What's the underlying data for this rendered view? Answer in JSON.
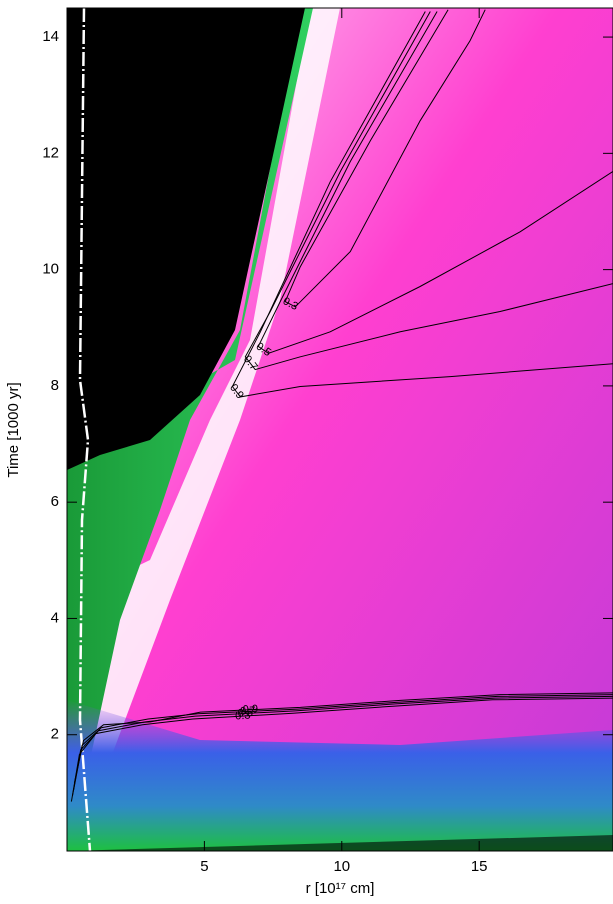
{
  "chart_data": {
    "type": "contour",
    "xlabel": "r [10¹⁷ cm]",
    "ylabel": "Time [1000 yr]",
    "xlim": [
      0,
      19.87
    ],
    "ylim": [
      0,
      14.5
    ],
    "xticks": [
      5,
      10,
      15
    ],
    "yticks": [
      2,
      4,
      6,
      8,
      10,
      12,
      14
    ],
    "line_color": "#000000",
    "contours": [
      {
        "level": 0.9,
        "x": [
          13.04,
          9.58,
          7.04,
          6.02,
          6.31,
          8.49,
          13.95,
          19.87
        ],
        "y": [
          14.44,
          11.51,
          8.93,
          7.99,
          7.81,
          7.99,
          8.16,
          8.38
        ]
      },
      {
        "level": 0.7,
        "x": [
          13.22,
          9.95,
          7.4,
          6.49,
          6.85,
          8.49,
          12.13,
          15.76,
          19.87
        ],
        "y": [
          14.44,
          11.69,
          9.28,
          8.5,
          8.28,
          8.5,
          8.93,
          9.28,
          9.76
        ]
      },
      {
        "level": 0.5,
        "x": [
          13.47,
          10.31,
          7.76,
          6.96,
          7.33,
          9.58,
          12.85,
          16.49,
          19.87
        ],
        "y": [
          14.44,
          11.86,
          9.45,
          8.68,
          8.56,
          8.93,
          9.71,
          10.65,
          11.69
        ]
      },
      {
        "level": 0.3,
        "x": [
          13.87,
          11.04,
          8.49,
          7.94,
          8.31,
          10.31,
          12.85,
          14.67,
          15.22
        ],
        "y": [
          14.47,
          12.22,
          10.05,
          9.45,
          9.36,
          10.31,
          12.56,
          13.94,
          14.47
        ]
      },
      {
        "level": 0.9,
        "x": [
          0.27,
          0.6,
          1.33,
          3.04,
          4.86,
          8.49,
          12.13,
          15.76,
          19.87
        ],
        "y": [
          1.17,
          1.9,
          2.17,
          2.22,
          2.39,
          2.47,
          2.59,
          2.69,
          2.72
        ]
      },
      {
        "level": 0.7,
        "x": [
          0.24,
          0.55,
          1.25,
          2.95,
          4.76,
          8.4,
          12.04,
          15.67,
          19.87
        ],
        "y": [
          1.05,
          1.82,
          2.12,
          2.27,
          2.36,
          2.44,
          2.56,
          2.66,
          2.69
        ]
      },
      {
        "level": 0.5,
        "x": [
          0.2,
          0.5,
          1.15,
          2.85,
          4.67,
          8.31,
          11.95,
          15.58,
          19.87
        ],
        "y": [
          0.95,
          1.74,
          2.07,
          2.22,
          2.32,
          2.41,
          2.53,
          2.63,
          2.66
        ]
      },
      {
        "level": 0.3,
        "x": [
          0.16,
          0.45,
          1.05,
          2.75,
          4.58,
          8.22,
          11.86,
          15.49,
          19.87
        ],
        "y": [
          0.85,
          1.66,
          2.02,
          2.17,
          2.27,
          2.37,
          2.49,
          2.6,
          2.63
        ]
      }
    ]
  }
}
